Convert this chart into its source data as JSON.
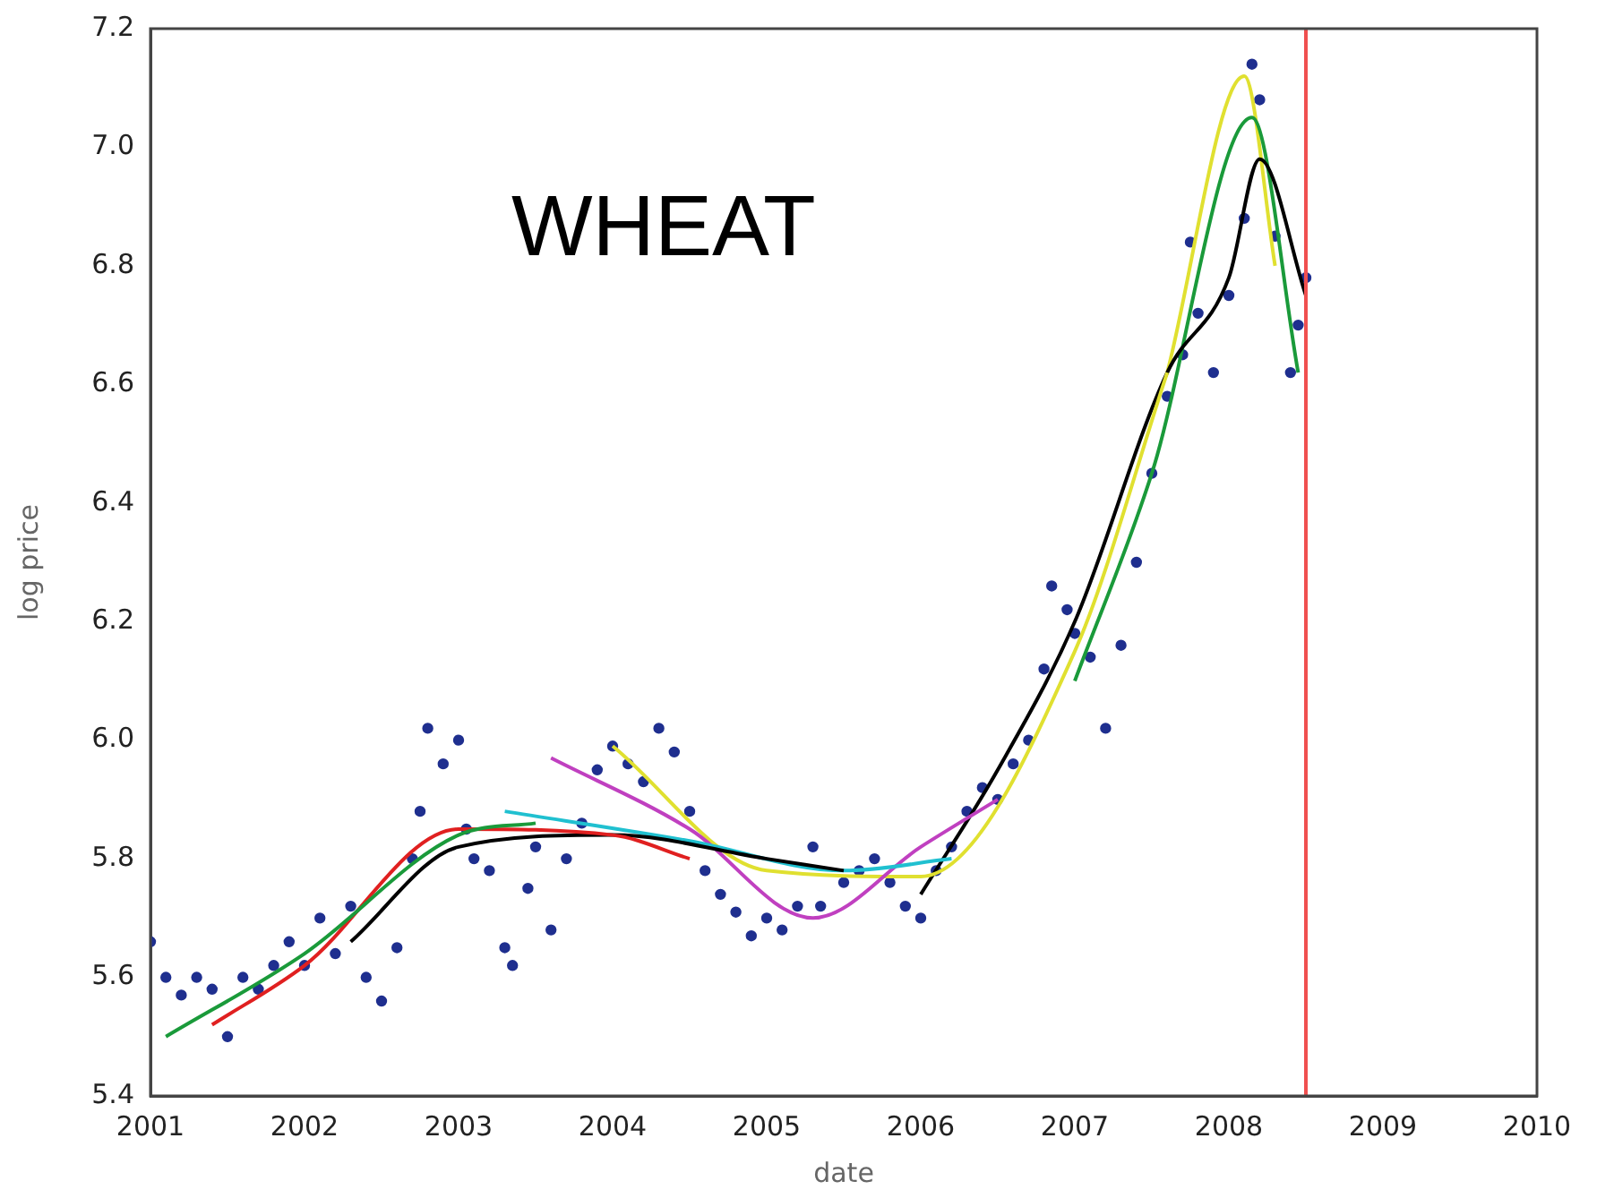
{
  "chart_data": {
    "type": "line",
    "title": "WHEAT",
    "xlabel": "date",
    "ylabel": "log price",
    "xlim": [
      2001,
      2010
    ],
    "xticks": [
      2001,
      2002,
      2003,
      2004,
      2005,
      2006,
      2007,
      2008,
      2009,
      2010
    ],
    "ylim": [
      5.4,
      7.2
    ],
    "yticks": [
      5.4,
      5.6,
      5.8,
      {
        "value": 6,
        "label": "6.0"
      },
      6.2,
      6.4,
      6.6,
      6.8,
      {
        "value": 7,
        "label": "7.0"
      },
      7.2
    ],
    "series": [
      {
        "type": "scatter",
        "marker": "circle",
        "color": "#1f2f8f",
        "x": [
          2001.0,
          2001.1,
          2001.2,
          2001.3,
          2001.4,
          2001.5,
          2001.6,
          2001.7,
          2001.8,
          2001.9,
          2002.0,
          2002.1,
          2002.2,
          2002.3,
          2002.4,
          2002.5,
          2002.6,
          2002.7,
          2002.75,
          2002.8,
          2002.9,
          2003.0,
          2003.05,
          2003.1,
          2003.2,
          2003.3,
          2003.35,
          2003.45,
          2003.5,
          2003.6,
          2003.7,
          2003.8,
          2003.9,
          2004.0,
          2004.1,
          2004.2,
          2004.3,
          2004.4,
          2004.5,
          2004.6,
          2004.7,
          2004.8,
          2004.9,
          2005.0,
          2005.1,
          2005.2,
          2005.3,
          2005.35,
          2005.5,
          2005.6,
          2005.7,
          2005.8,
          2005.9,
          2006.0,
          2006.1,
          2006.2,
          2006.3,
          2006.4,
          2006.5,
          2006.6,
          2006.7,
          2006.8,
          2006.85,
          2006.95,
          2007.0,
          2007.1,
          2007.2,
          2007.3,
          2007.4,
          2007.5,
          2007.6,
          2007.7,
          2007.75,
          2007.8,
          2007.9,
          2008.0,
          2008.1,
          2008.15,
          2008.2,
          2008.3,
          2008.4,
          2008.45,
          2008.5
        ],
        "values": [
          5.66,
          5.6,
          5.57,
          5.6,
          5.58,
          5.5,
          5.6,
          5.58,
          5.62,
          5.66,
          5.62,
          5.7,
          5.64,
          5.72,
          5.6,
          5.56,
          5.65,
          5.8,
          5.88,
          6.02,
          5.96,
          6.0,
          5.85,
          5.8,
          5.78,
          5.65,
          5.62,
          5.75,
          5.82,
          5.68,
          5.8,
          5.86,
          5.95,
          5.99,
          5.96,
          5.93,
          6.02,
          5.98,
          5.88,
          5.78,
          5.74,
          5.71,
          5.67,
          5.7,
          5.68,
          5.72,
          5.82,
          5.72,
          5.76,
          5.78,
          5.8,
          5.76,
          5.72,
          5.7,
          5.78,
          5.82,
          5.88,
          5.92,
          5.9,
          5.96,
          6.0,
          6.12,
          6.26,
          6.22,
          6.18,
          6.14,
          6.02,
          6.16,
          6.3,
          6.45,
          6.58,
          6.65,
          6.84,
          6.72,
          6.62,
          6.75,
          6.88,
          7.14,
          7.08,
          6.85,
          6.62,
          6.7,
          6.78
        ]
      },
      {
        "color": "#1a9a3a",
        "x": [
          2001.1,
          2002,
          2003,
          2003.5
        ],
        "values": [
          5.5,
          5.64,
          5.84,
          5.86
        ]
      },
      {
        "color": "#e02020",
        "x": [
          2001.4,
          2002,
          2003,
          2004,
          2004.5
        ],
        "values": [
          5.52,
          5.62,
          5.85,
          5.84,
          5.8
        ]
      },
      {
        "color": "#000000",
        "x": [
          2002.3,
          2003,
          2004,
          2005,
          2005.5
        ],
        "values": [
          5.66,
          5.82,
          5.84,
          5.8,
          5.78
        ]
      },
      {
        "color": "#20c0d0",
        "x": [
          2003.3,
          2004.5,
          2005.5,
          2006.2
        ],
        "values": [
          5.88,
          5.83,
          5.78,
          5.8
        ]
      },
      {
        "color": "#c040c0",
        "x": [
          2003.6,
          2004.5,
          2005.3,
          2006,
          2006.5
        ],
        "values": [
          5.97,
          5.85,
          5.7,
          5.82,
          5.9
        ]
      },
      {
        "color": "#e0e030",
        "x": [
          2004,
          2005,
          2006,
          2007,
          2007.6
        ],
        "values": [
          5.99,
          5.78,
          5.77,
          6.15,
          6.62
        ]
      },
      {
        "color": "#000000",
        "x": [
          2006,
          2006.5,
          2007,
          2007.6,
          2008,
          2008.2,
          2008.5
        ],
        "values": [
          5.74,
          5.95,
          6.2,
          6.62,
          6.78,
          6.98,
          6.75
        ]
      },
      {
        "color": "#1a9a3a",
        "x": [
          2007,
          2007.5,
          2008.15,
          2008.45
        ],
        "values": [
          6.1,
          6.45,
          7.05,
          6.62
        ]
      },
      {
        "color": "#e0e030",
        "x": [
          2007.6,
          2008.1,
          2008.3
        ],
        "values": [
          6.62,
          7.12,
          6.8
        ]
      }
    ],
    "ref_lines": [
      {
        "axis": "x",
        "value": 2008.5,
        "color": "#f05050"
      }
    ]
  }
}
